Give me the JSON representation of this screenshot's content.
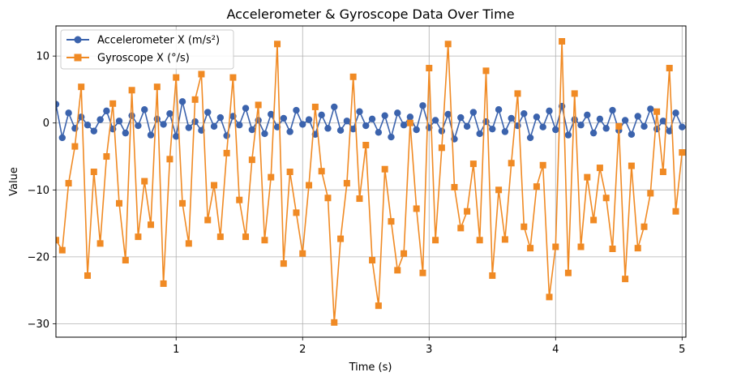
{
  "chart_data": {
    "type": "line",
    "title": "Accelerometer & Gyroscope Data Over Time",
    "xlabel": "Time (s)",
    "ylabel": "Value",
    "xlim": [
      0.05,
      5.03
    ],
    "ylim": [
      -32,
      14.5
    ],
    "xticks": [
      1,
      2,
      3,
      4,
      5
    ],
    "yticks": [
      10,
      0,
      -10,
      -20,
      -30
    ],
    "grid": true,
    "legend_position": "top-left",
    "series": [
      {
        "name": "Accelerometer X (m/s²)",
        "color": "#3b63ad",
        "marker": "circle",
        "x": [
          0.05,
          0.1,
          0.15,
          0.2,
          0.25,
          0.3,
          0.35,
          0.4,
          0.45,
          0.5,
          0.55,
          0.6,
          0.65,
          0.7,
          0.75,
          0.8,
          0.85,
          0.9,
          0.95,
          1.0,
          1.05,
          1.1,
          1.15,
          1.2,
          1.25,
          1.3,
          1.35,
          1.4,
          1.45,
          1.5,
          1.55,
          1.6,
          1.65,
          1.7,
          1.75,
          1.8,
          1.85,
          1.9,
          1.95,
          2.0,
          2.05,
          2.1,
          2.15,
          2.2,
          2.25,
          2.3,
          2.35,
          2.4,
          2.45,
          2.5,
          2.55,
          2.6,
          2.65,
          2.7,
          2.75,
          2.8,
          2.85,
          2.9,
          2.95,
          3.0,
          3.05,
          3.1,
          3.15,
          3.2,
          3.25,
          3.3,
          3.35,
          3.4,
          3.45,
          3.5,
          3.55,
          3.6,
          3.65,
          3.7,
          3.75,
          3.8,
          3.85,
          3.9,
          3.95,
          4.0,
          4.05,
          4.1,
          4.15,
          4.2,
          4.25,
          4.3,
          4.35,
          4.4,
          4.45,
          4.5,
          4.55,
          4.6,
          4.65,
          4.7,
          4.75,
          4.8,
          4.85,
          4.9,
          4.95,
          5.0
        ],
        "y": [
          2.8,
          -2.2,
          1.5,
          -0.8,
          0.9,
          -0.3,
          -1.2,
          0.5,
          1.8,
          -0.9,
          0.3,
          -1.5,
          1.1,
          -0.4,
          2.0,
          -1.8,
          0.6,
          -0.2,
          1.4,
          -2.0,
          3.2,
          -0.7,
          0.2,
          -1.1,
          1.6,
          -0.5,
          0.8,
          -1.9,
          1.0,
          -0.3,
          2.2,
          -1.0,
          0.4,
          -1.6,
          1.3,
          -0.6,
          0.7,
          -1.3,
          1.9,
          -0.2,
          0.5,
          -1.7,
          1.2,
          -0.8,
          2.4,
          -1.1,
          0.3,
          -0.9,
          1.7,
          -0.4,
          0.6,
          -1.4,
          1.1,
          -2.1,
          1.5,
          -0.3,
          0.9,
          -1.0,
          2.6,
          -0.7,
          0.4,
          -1.2,
          1.3,
          -2.4,
          0.8,
          -0.5,
          1.6,
          -1.6,
          0.2,
          -0.9,
          2.0,
          -1.3,
          0.7,
          -0.4,
          1.4,
          -2.2,
          0.9,
          -0.6,
          1.8,
          -1.0,
          2.5,
          -1.8,
          0.5,
          -0.3,
          1.2,
          -1.5,
          0.6,
          -0.8,
          1.9,
          -1.1,
          0.4,
          -1.7,
          1.0,
          -0.5,
          2.1,
          -0.9,
          0.3,
          -1.2,
          1.5,
          -0.6
        ]
      },
      {
        "name": "Gyroscope X (°/s)",
        "color": "#f08a24",
        "marker": "square",
        "x": [
          0.05,
          0.1,
          0.15,
          0.2,
          0.25,
          0.3,
          0.35,
          0.4,
          0.45,
          0.5,
          0.55,
          0.6,
          0.65,
          0.7,
          0.75,
          0.8,
          0.85,
          0.9,
          0.95,
          1.0,
          1.05,
          1.1,
          1.15,
          1.2,
          1.25,
          1.3,
          1.35,
          1.4,
          1.45,
          1.5,
          1.55,
          1.6,
          1.65,
          1.7,
          1.75,
          1.8,
          1.85,
          1.9,
          1.95,
          2.0,
          2.05,
          2.1,
          2.15,
          2.2,
          2.25,
          2.3,
          2.35,
          2.4,
          2.45,
          2.5,
          2.55,
          2.6,
          2.65,
          2.7,
          2.75,
          2.8,
          2.85,
          2.9,
          2.95,
          3.0,
          3.05,
          3.1,
          3.15,
          3.2,
          3.25,
          3.3,
          3.35,
          3.4,
          3.45,
          3.5,
          3.55,
          3.6,
          3.65,
          3.7,
          3.75,
          3.8,
          3.85,
          3.9,
          3.95,
          4.0,
          4.05,
          4.1,
          4.15,
          4.2,
          4.25,
          4.3,
          4.35,
          4.4,
          4.45,
          4.5,
          4.55,
          4.6,
          4.65,
          4.7,
          4.75,
          4.8,
          4.85,
          4.9,
          4.95,
          5.0
        ],
        "y": [
          -17.5,
          -19,
          -9,
          -3.5,
          5.4,
          -22.8,
          -7.3,
          -18,
          -5.0,
          2.9,
          -12,
          -20.5,
          4.9,
          -17,
          -8.7,
          -15.2,
          5.4,
          -24,
          -5.4,
          6.8,
          -12,
          -18,
          3.5,
          7.3,
          -14.5,
          -9.3,
          -17,
          -4.5,
          6.8,
          -11.5,
          -17,
          -5.5,
          2.7,
          -17.5,
          -8.1,
          11.8,
          -21,
          -7.3,
          -13.4,
          -19.5,
          -9.3,
          2.4,
          -7.2,
          -11.2,
          -29.8,
          -17.3,
          -9.0,
          6.9,
          -11.3,
          -3.3,
          -20.5,
          -27.3,
          -6.9,
          -14.7,
          -22,
          -19.5,
          0.0,
          -12.8,
          -22.4,
          8.2,
          -17.5,
          -3.7,
          11.8,
          -9.6,
          -15.7,
          -13.2,
          -6.1,
          -17.5,
          7.8,
          -22.8,
          -10.0,
          -17.4,
          -6.0,
          4.4,
          -15.5,
          -18.7,
          -9.5,
          -6.3,
          -26.0,
          -18.5,
          12.2,
          -22.4,
          4.4,
          -18.5,
          -8.1,
          -14.5,
          -6.7,
          -11.2,
          -18.8,
          -0.5,
          -23.3,
          -6.4,
          -18.7,
          -15.5,
          -10.5,
          1.7,
          -7.3,
          8.2,
          -13.2,
          -4.4
        ]
      }
    ]
  }
}
